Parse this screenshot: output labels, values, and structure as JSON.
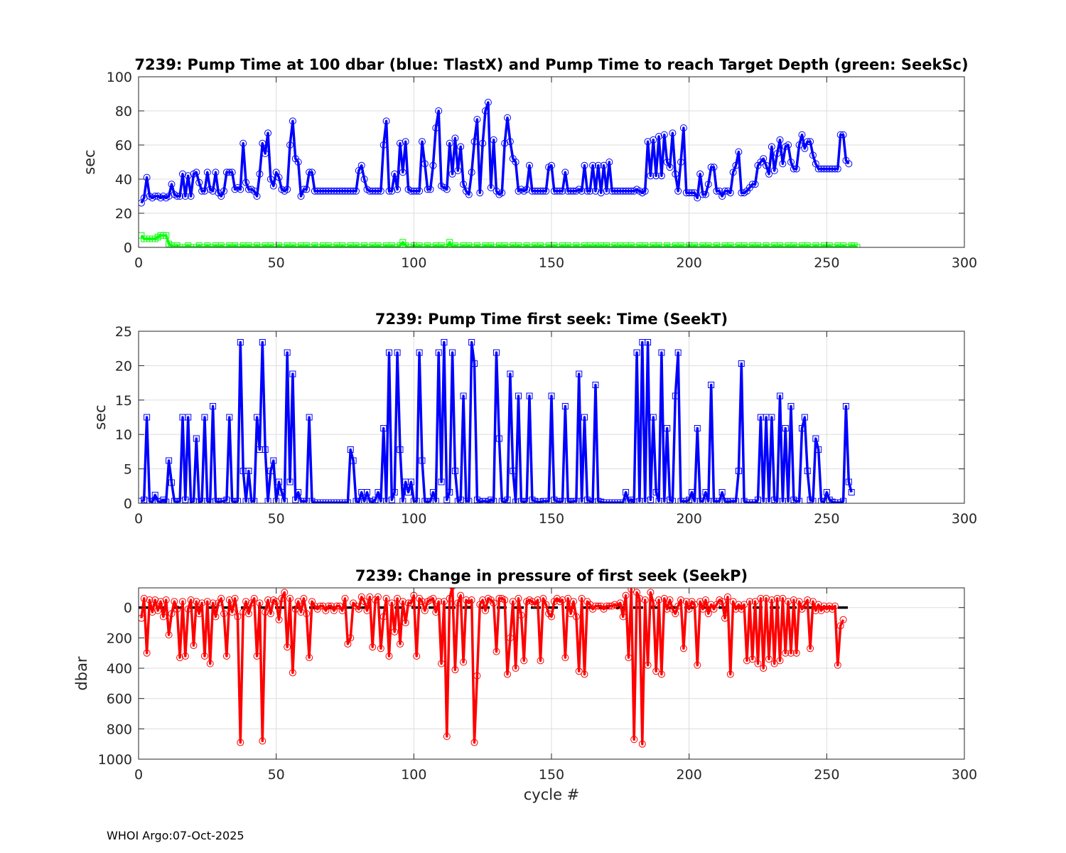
{
  "footer": "WHOI Argo:07-Oct-2025",
  "colors": {
    "blue": "#0000ff",
    "green": "#00ff00",
    "red": "#ff0000",
    "grid": "#dddddd",
    "zero_line": "#000000"
  },
  "chart_data": [
    {
      "type": "line",
      "title": "7239:  Pump Time at 100 dbar (blue: TlastX) and Pump Time to reach Target Depth (green: SeekSc)",
      "xlabel": "",
      "ylabel": "sec",
      "xlim": [
        0,
        300
      ],
      "ylim": [
        0,
        100
      ],
      "y_reversed": false,
      "xticks": [
        0,
        50,
        100,
        150,
        200,
        250,
        300
      ],
      "yticks": [
        0,
        20,
        40,
        60,
        80,
        100
      ],
      "grid": true,
      "series": [
        {
          "color": "#0000ff",
          "marker": "circle",
          "x_start": 1,
          "values": [
            26,
            29,
            41,
            30,
            29,
            30,
            30,
            29,
            30,
            29,
            30,
            37,
            31,
            30,
            30,
            43,
            30,
            42,
            30,
            43,
            44,
            38,
            33,
            33,
            44,
            34,
            33,
            44,
            32,
            30,
            33,
            44,
            44,
            44,
            34,
            35,
            34,
            61,
            38,
            34,
            34,
            33,
            30,
            43,
            61,
            55,
            67,
            40,
            36,
            44,
            41,
            34,
            33,
            34,
            60,
            74,
            52,
            50,
            30,
            34,
            34,
            44,
            44,
            33,
            33,
            33,
            33,
            33,
            33,
            33,
            33,
            33,
            33,
            33,
            33,
            33,
            33,
            33,
            33,
            45,
            48,
            40,
            34,
            33,
            33,
            33,
            33,
            33,
            60,
            74,
            33,
            33,
            43,
            34,
            61,
            44,
            62,
            34,
            33,
            33,
            33,
            33,
            62,
            49,
            34,
            34,
            48,
            70,
            80,
            36,
            35,
            34,
            61,
            43,
            64,
            45,
            59,
            37,
            33,
            31,
            44,
            62,
            75,
            32,
            61,
            80,
            85,
            35,
            63,
            33,
            31,
            32,
            61,
            76,
            62,
            52,
            50,
            33,
            34,
            33,
            34,
            48,
            33,
            33,
            33,
            33,
            33,
            33,
            47,
            48,
            33,
            33,
            33,
            33,
            44,
            33,
            33,
            33,
            33,
            34,
            33,
            48,
            33,
            33,
            48,
            33,
            48,
            32,
            48,
            33,
            50,
            33,
            33,
            33,
            33,
            33,
            33,
            33,
            33,
            33,
            34,
            33,
            32,
            33,
            62,
            42,
            63,
            42,
            65,
            42,
            66,
            50,
            47,
            67,
            43,
            33,
            50,
            70,
            32,
            32,
            32,
            32,
            29,
            43,
            31,
            31,
            37,
            47,
            47,
            33,
            33,
            30,
            33,
            33,
            32,
            44,
            48,
            56,
            32,
            32,
            33,
            35,
            37,
            37,
            48,
            50,
            52,
            48,
            43,
            59,
            45,
            55,
            63,
            49,
            59,
            60,
            50,
            46,
            46,
            60,
            66,
            58,
            62,
            62,
            54,
            49,
            46,
            46,
            46,
            46,
            46,
            46,
            46,
            46,
            66,
            66,
            51,
            49
          ]
        },
        {
          "color": "#00ff00",
          "marker": "square",
          "x_start": 1,
          "values": [
            7,
            5,
            5,
            5,
            5,
            5,
            6,
            7,
            7,
            7,
            2,
            1,
            0,
            1,
            0,
            0,
            0,
            1,
            0,
            0,
            0,
            1,
            0,
            0,
            1,
            0,
            0,
            1,
            0,
            1,
            0,
            0,
            1,
            0,
            1,
            0,
            0,
            1,
            0,
            1,
            0,
            0,
            1,
            0,
            0,
            1,
            0,
            1,
            0,
            0,
            1,
            0,
            0,
            1,
            0,
            1,
            0,
            0,
            1,
            0,
            1,
            0,
            0,
            1,
            0,
            0,
            1,
            0,
            1,
            0,
            0,
            1,
            0,
            1,
            0,
            0,
            1,
            0,
            1,
            0,
            0,
            1,
            0,
            0,
            1,
            0,
            1,
            0,
            0,
            1,
            0,
            1,
            0,
            0,
            1,
            3,
            1,
            0,
            0,
            1,
            0,
            1,
            0,
            0,
            1,
            0,
            0,
            1,
            0,
            1,
            0,
            0,
            3,
            0,
            1,
            0,
            0,
            1,
            0,
            1,
            0,
            0,
            1,
            0,
            0,
            1,
            0,
            1,
            0,
            0,
            1,
            0,
            1,
            0,
            0,
            1,
            0,
            1,
            0,
            0,
            1,
            0,
            0,
            1,
            0,
            1,
            0,
            0,
            1,
            0,
            1,
            0,
            0,
            1,
            0,
            1,
            0,
            0,
            1,
            0,
            0,
            1,
            0,
            1,
            0,
            1,
            0,
            1,
            0,
            1,
            0,
            0,
            1,
            0,
            1,
            0,
            1,
            0,
            1,
            0,
            0,
            1,
            0,
            1,
            0,
            0,
            1,
            0,
            1,
            0,
            0,
            1,
            0,
            0,
            1,
            0,
            1,
            0,
            0,
            1,
            0,
            1,
            0,
            0,
            1,
            0,
            1,
            0,
            0,
            1,
            0,
            0,
            1,
            0,
            1,
            0,
            0,
            1,
            0,
            1,
            0,
            0,
            1,
            0,
            1,
            0,
            0,
            1,
            0,
            0,
            1,
            0,
            1,
            0,
            0,
            1,
            0,
            1,
            0,
            0,
            1,
            0,
            1,
            0,
            0,
            1,
            0,
            0,
            1,
            0,
            1,
            0,
            0,
            1,
            0,
            1,
            0,
            0,
            1,
            1,
            0
          ]
        }
      ]
    },
    {
      "type": "line",
      "title": "7239: Pump Time first seek: Time (SeekT)",
      "xlabel": "",
      "ylabel": "sec",
      "xlim": [
        0,
        300
      ],
      "ylim": [
        0,
        25
      ],
      "y_reversed": false,
      "xticks": [
        0,
        50,
        100,
        150,
        200,
        250,
        300
      ],
      "yticks": [
        0,
        5,
        10,
        15,
        20,
        25
      ],
      "grid": true,
      "series": [
        {
          "color": "#0000ff",
          "marker": "square",
          "x_start": 1,
          "values": [
            0.3,
            0.5,
            12.5,
            0.3,
            0.2,
            1.2,
            0.3,
            0.2,
            0.5,
            0.2,
            6.2,
            3.0,
            0.3,
            0.2,
            0.3,
            12.5,
            0.5,
            12.5,
            0.2,
            0.3,
            9.4,
            0.2,
            0.3,
            12.5,
            0.3,
            0.2,
            14.1,
            0.3,
            0.2,
            0.3,
            0.3,
            0.5,
            12.5,
            0.3,
            0.2,
            0.3,
            23.4,
            4.7,
            0.3,
            4.7,
            0.3,
            0.3,
            12.5,
            7.8,
            23.4,
            7.8,
            0.3,
            4.7,
            6.2,
            0.3,
            3.1,
            1.6,
            0.3,
            21.9,
            3.1,
            18.8,
            0.5,
            1.6,
            0.3,
            0.3,
            0.3,
            12.5,
            0.3,
            0.1,
            0.1,
            0.1,
            0.1,
            0.1,
            0.1,
            0.1,
            0.1,
            0.1,
            0.1,
            0.1,
            0.1,
            0.1,
            7.8,
            6.2,
            0.3,
            0.2,
            1.6,
            0.3,
            1.6,
            0.3,
            0.2,
            0.5,
            1.6,
            0.3,
            10.9,
            0.3,
            21.9,
            0.5,
            1.6,
            21.9,
            7.8,
            0.3,
            3.1,
            1.6,
            3.1,
            0.3,
            0.3,
            21.9,
            6.2,
            0.3,
            0.2,
            0.3,
            1.6,
            0.3,
            21.9,
            3.1,
            23.4,
            0.5,
            1.6,
            21.9,
            4.7,
            0.3,
            0.5,
            15.6,
            0.3,
            0.3,
            23.4,
            20.3,
            0.5,
            0.2,
            0.3,
            0.3,
            0.2,
            0.5,
            0.3,
            21.9,
            9.4,
            0.3,
            0.2,
            0.5,
            18.8,
            4.7,
            0.2,
            15.6,
            0.3,
            0.2,
            0.3,
            15.6,
            0.5,
            0.3,
            0.2,
            0.2,
            0.3,
            0.3,
            0.3,
            15.6,
            0.5,
            0.3,
            0.2,
            0.3,
            14.1,
            0.3,
            0.2,
            0.3,
            0.3,
            18.8,
            0.3,
            12.5,
            0.5,
            0.3,
            0.2,
            17.2,
            0.3,
            0.2,
            0.1,
            0.1,
            0.1,
            0.1,
            0.1,
            0.1,
            0.1,
            0.1,
            1.6,
            0.3,
            0.5,
            0.2,
            21.9,
            0.3,
            23.4,
            0.3,
            23.4,
            0.5,
            12.5,
            1.6,
            0.3,
            21.9,
            0.3,
            10.9,
            0.5,
            0.3,
            15.6,
            21.9,
            0.3,
            0.3,
            0.3,
            0.5,
            1.6,
            0.3,
            10.9,
            0.3,
            0.3,
            1.6,
            0.3,
            17.2,
            0.3,
            0.3,
            0.3,
            1.6,
            0.3,
            0.2,
            0.3,
            0.3,
            0.3,
            4.7,
            20.3,
            0.3,
            0.1,
            0.1,
            0.1,
            0.1,
            0.5,
            12.5,
            0.3,
            12.5,
            0.3,
            12.5,
            0.5,
            0.3,
            15.6,
            0.3,
            10.9,
            0.3,
            14.1,
            0.5,
            0.3,
            0.3,
            10.9,
            12.5,
            4.7,
            0.5,
            0.3,
            9.4,
            7.8,
            0.3,
            0.2,
            1.6,
            0.5,
            0.2,
            0.1,
            0.1,
            0.1,
            0.3,
            14.1,
            3.1,
            1.6
          ]
        }
      ]
    },
    {
      "type": "line",
      "title": "7239: Change in pressure of first seek (SeekP)",
      "xlabel": "cycle #",
      "ylabel": "dbar",
      "xlim": [
        0,
        300
      ],
      "ylim": [
        -130,
        1000
      ],
      "y_reversed": true,
      "xticks": [
        0,
        50,
        100,
        150,
        200,
        250,
        300
      ],
      "yticks": [
        0,
        200,
        400,
        600,
        800,
        1000
      ],
      "grid": true,
      "zero_line": {
        "y": 0,
        "x_range": [
          0,
          258
        ],
        "style": "dashed"
      },
      "series": [
        {
          "color": "#ff0000",
          "marker": "circle",
          "x_start": 1,
          "values": [
            70,
            -60,
            300,
            -50,
            30,
            -50,
            20,
            -40,
            60,
            -50,
            180,
            40,
            -40,
            10,
            330,
            -40,
            320,
            10,
            -50,
            250,
            -40,
            40,
            -30,
            320,
            -40,
            370,
            -30,
            60,
            -30,
            -60,
            40,
            320,
            -50,
            30,
            -60,
            60,
            890,
            30,
            -40,
            40,
            -30,
            -60,
            320,
            -30,
            880,
            30,
            -50,
            40,
            -50,
            -40,
            80,
            -60,
            -100,
            260,
            -60,
            430,
            10,
            -40,
            30,
            -60,
            40,
            330,
            -40,
            -10,
            10,
            -10,
            -10,
            20,
            -10,
            -10,
            20,
            -10,
            -10,
            20,
            -60,
            240,
            200,
            -30,
            -10,
            10,
            -70,
            -40,
            20,
            -70,
            260,
            -50,
            -70,
            270,
            60,
            -60,
            320,
            -30,
            160,
            -60,
            240,
            -40,
            100,
            -30,
            -30,
            -80,
            320,
            -60,
            -40,
            20,
            -40,
            -50,
            -60,
            30,
            -40,
            370,
            -40,
            850,
            -60,
            -140,
            410,
            -30,
            -80,
            360,
            -50,
            -30,
            -50,
            890,
            450,
            -20,
            -50,
            20,
            -60,
            -50,
            -30,
            290,
            -60,
            -60,
            -50,
            440,
            200,
            -40,
            400,
            -60,
            50,
            350,
            -40,
            -50,
            -40,
            -20,
            -50,
            350,
            -60,
            -20,
            40,
            60,
            -40,
            -60,
            -40,
            -50,
            330,
            -60,
            40,
            -40,
            60,
            420,
            -60,
            440,
            -40,
            -20,
            10,
            -10,
            -10,
            -10,
            10,
            -10,
            -10,
            -10,
            -20,
            -10,
            -30,
            60,
            -80,
            330,
            -120,
            870,
            -100,
            -60,
            900,
            -50,
            380,
            -100,
            -30,
            420,
            -50,
            440,
            -60,
            10,
            -50,
            10,
            40,
            -10,
            -50,
            270,
            -40,
            10,
            -40,
            -20,
            380,
            -40,
            10,
            -50,
            40,
            -20,
            10,
            -20,
            -50,
            -40,
            70,
            -70,
            440,
            -40,
            10,
            -20,
            10,
            -20,
            350,
            -40,
            340,
            -40,
            370,
            -60,
            400,
            -60,
            340,
            -50,
            370,
            -60,
            350,
            -60,
            300,
            -40,
            300,
            -50,
            300,
            -40,
            10,
            -20,
            -50,
            270,
            -40,
            20,
            -20,
            20,
            -10,
            10,
            -10,
            10,
            -10,
            380,
            120,
            80
          ]
        }
      ]
    }
  ]
}
